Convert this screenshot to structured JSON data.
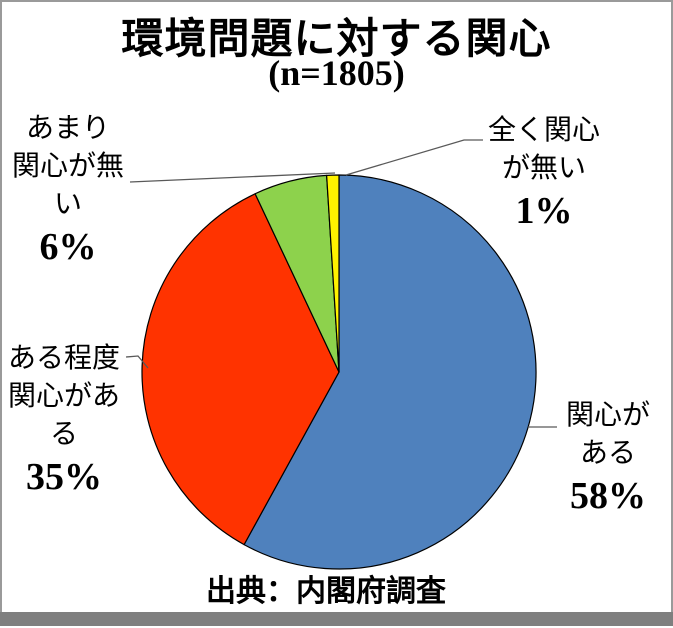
{
  "window": {
    "background": "#FFFFFF",
    "frame_border_color": "#9A9A9A",
    "bottom_bar_color": "#7F7F7F"
  },
  "chart_data": {
    "type": "pie",
    "title": "環境問題に対する関心",
    "subtitle": "(n=1805)",
    "sample_size": 1805,
    "source": "出典：内閣府調査",
    "legend": "none",
    "direction": "clockwise",
    "start_angle_deg": 0,
    "slice_border_color": "#000000",
    "leader_line_color": "#595959",
    "slices": [
      {
        "label": "関心がある",
        "value": 58,
        "pct_label": "58%",
        "color": "#4F81BD"
      },
      {
        "label": "ある程度関心がある",
        "value": 35,
        "pct_label": "35%",
        "color": "#FF3300"
      },
      {
        "label": "あまり関心が無い",
        "value": 6,
        "pct_label": "6%",
        "color": "#8DD24C"
      },
      {
        "label": "全く関心が無い",
        "value": 1,
        "pct_label": "1%",
        "color": "#FFF200"
      }
    ],
    "labels": {
      "kanshin_ga_aru": {
        "lines": [
          "関心が",
          "ある",
          "58%"
        ]
      },
      "aruteido_kanshin": {
        "lines": [
          "ある程度",
          "関心があ",
          "る",
          "35%"
        ]
      },
      "amari_kanshin": {
        "lines": [
          "あまり",
          "関心が無",
          "い",
          "6%"
        ]
      },
      "mattaku_kanshin": {
        "lines": [
          "全く関心",
          "が無い",
          "1%"
        ]
      }
    }
  }
}
